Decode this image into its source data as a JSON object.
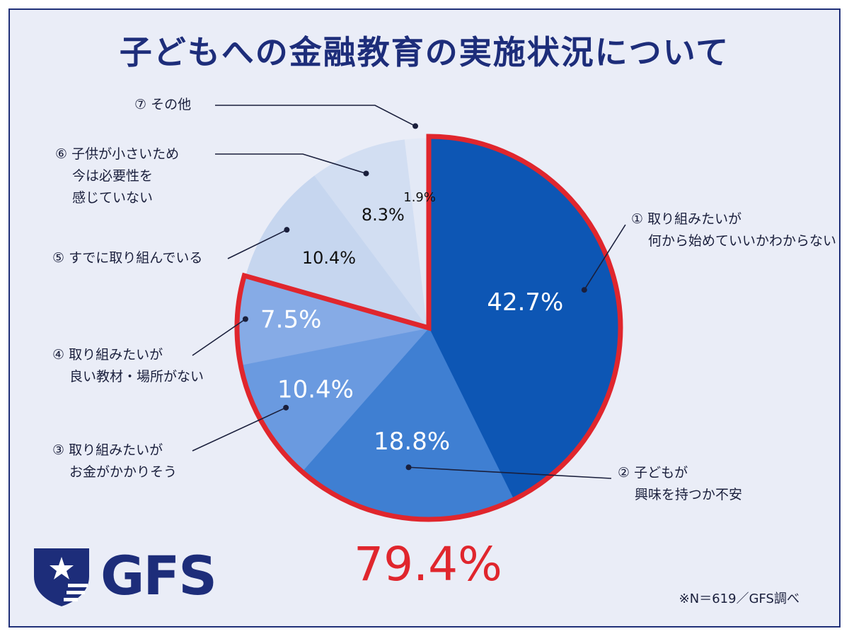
{
  "title": "子どもへの金融教育の実施状況について",
  "chart_data": {
    "type": "pie",
    "title": "子どもへの金融教育の実施状況について",
    "slices": [
      {
        "label_lines": [
          "① 取り組みたいが",
          "何から始めていいかわからない"
        ],
        "value": 42.7,
        "value_label": "42.7%",
        "color": "#0d56b4",
        "highlighted": true
      },
      {
        "label_lines": [
          "② 子どもが",
          "興味を持つか不安"
        ],
        "value": 18.8,
        "value_label": "18.8%",
        "color": "#3f7fd2",
        "highlighted": true
      },
      {
        "label_lines": [
          "③ 取り組みたいが",
          "お金がかかりそう"
        ],
        "value": 10.4,
        "value_label": "10.4%",
        "color": "#6a9ae0",
        "highlighted": true
      },
      {
        "label_lines": [
          "④ 取り組みたいが",
          "良い教材・場所がない"
        ],
        "value": 7.5,
        "value_label": "7.5%",
        "color": "#86abe6",
        "highlighted": true
      },
      {
        "label_lines": [
          "⑤ すでに取り組んでいる"
        ],
        "value": 10.4,
        "value_label": "10.4%",
        "color": "#c6d6ef",
        "highlighted": false
      },
      {
        "label_lines": [
          "⑥ 子供が小さいため",
          "今は必要性を",
          "感じていない"
        ],
        "value": 8.3,
        "value_label": "8.3%",
        "color": "#d2def2",
        "highlighted": false
      },
      {
        "label_lines": [
          "⑦ その他"
        ],
        "value": 1.9,
        "value_label": "1.9%",
        "color": "#e3e9f6",
        "highlighted": false
      }
    ],
    "highlight_total": "79.4%",
    "highlight_color": "#e0262d"
  },
  "footnote": "※N＝619／GFS調べ",
  "logo": {
    "text": "GFS",
    "icon": "shield-star-icon",
    "color": "#1d2d7a"
  }
}
